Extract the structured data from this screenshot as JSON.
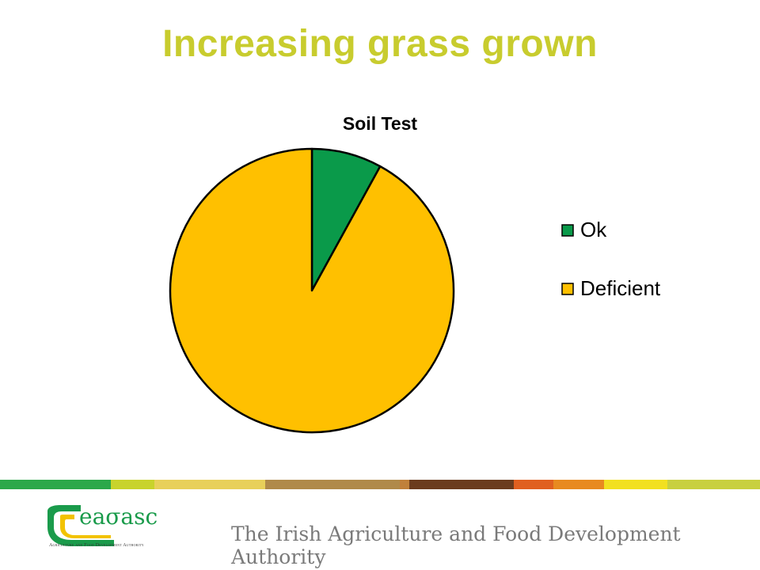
{
  "slide": {
    "title": "Increasing grass grown"
  },
  "chart_data": {
    "type": "pie",
    "title": "Soil Test",
    "categories": [
      "Ok",
      "Deficient"
    ],
    "values": [
      8,
      92
    ],
    "colors": [
      "#0a9a4a",
      "#ffc000"
    ],
    "slice_border": "#000000",
    "legend_position": "right"
  },
  "footer": {
    "strip_colors": [
      "#2ca84a",
      "#c8d32c",
      "#e8d05a",
      "#e0c860",
      "#b08a4a",
      "#c0803a",
      "#6b3c1e",
      "#e06020",
      "#e88a20",
      "#f2e020",
      "#c8d040"
    ],
    "logo_text": "eaσasc",
    "logo_tagline": "Agriculture and Food Development Authority",
    "authority_text": "The Irish Agriculture and Food Development Authority"
  }
}
